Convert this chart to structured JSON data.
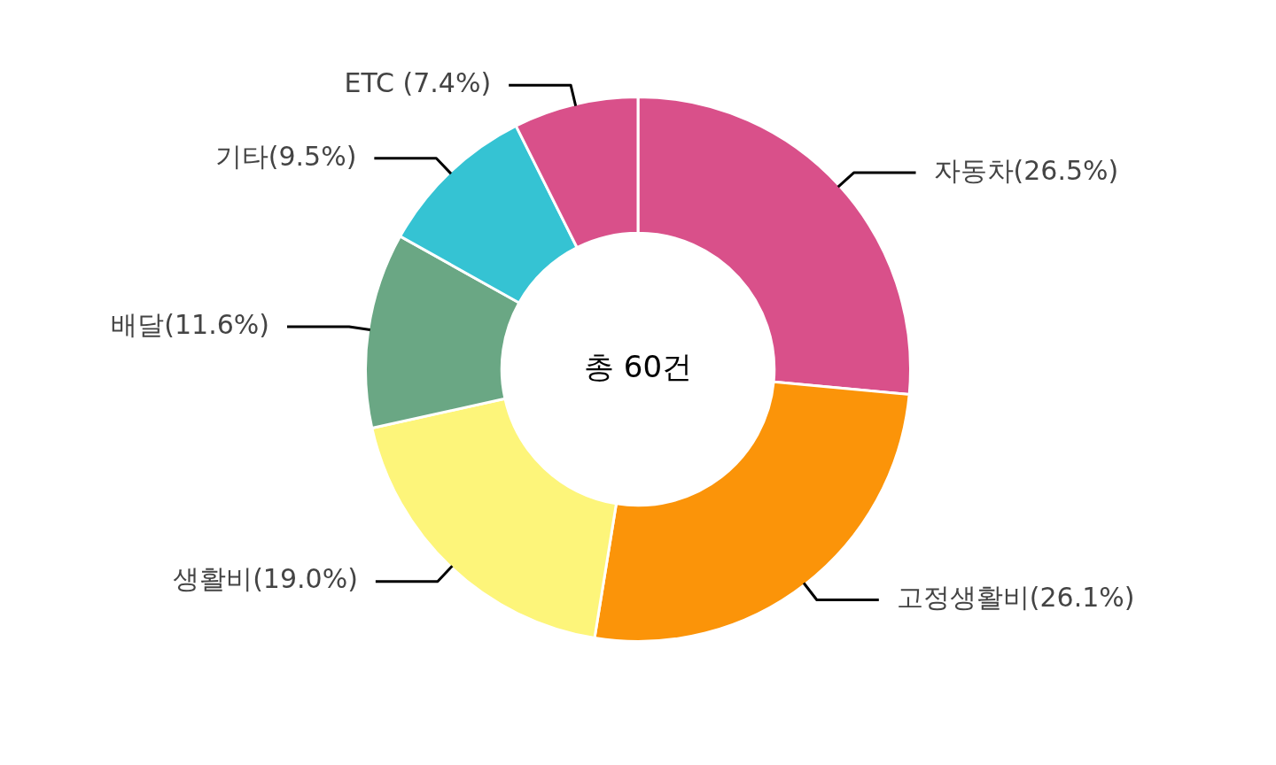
{
  "chart_data": {
    "type": "donut",
    "categories": [
      "자동차(26.5%)",
      "고정생활비(26.1%)",
      "생활비(19.0%)",
      "배달(11.6%)",
      "기타(9.5%)",
      "ETC (7.4%)"
    ],
    "values": [
      26.5,
      26.1,
      19.0,
      11.6,
      9.5,
      7.4
    ],
    "colors": [
      "#d9508a",
      "#fb9409",
      "#fdf57a",
      "#6aa784",
      "#35c3d3",
      "#d9508a"
    ],
    "annotations": [
      "총 60건"
    ],
    "legend": false
  }
}
